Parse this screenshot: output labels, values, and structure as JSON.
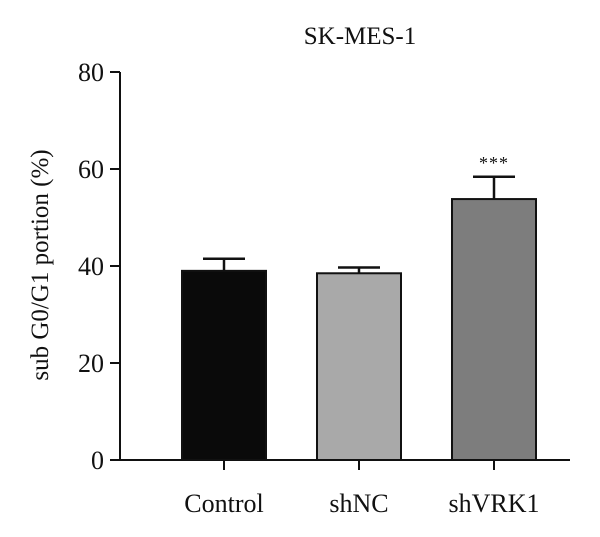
{
  "chart_data": {
    "type": "bar",
    "title": "SK-MES-1",
    "xlabel": "",
    "ylabel": "sub G0/G1 portion (%)",
    "ylim": [
      0,
      80
    ],
    "yticks": [
      0,
      20,
      40,
      60,
      80
    ],
    "grid": false,
    "categories": [
      "Control",
      "shNC",
      "shVRK1"
    ],
    "values": [
      39,
      38.5,
      53.8
    ],
    "errors": [
      2.5,
      1.2,
      4.6
    ],
    "annotations": [
      "",
      "",
      "***"
    ],
    "colors": [
      "#0a0a0a",
      "#a9a9a9",
      "#7d7d7d"
    ]
  }
}
